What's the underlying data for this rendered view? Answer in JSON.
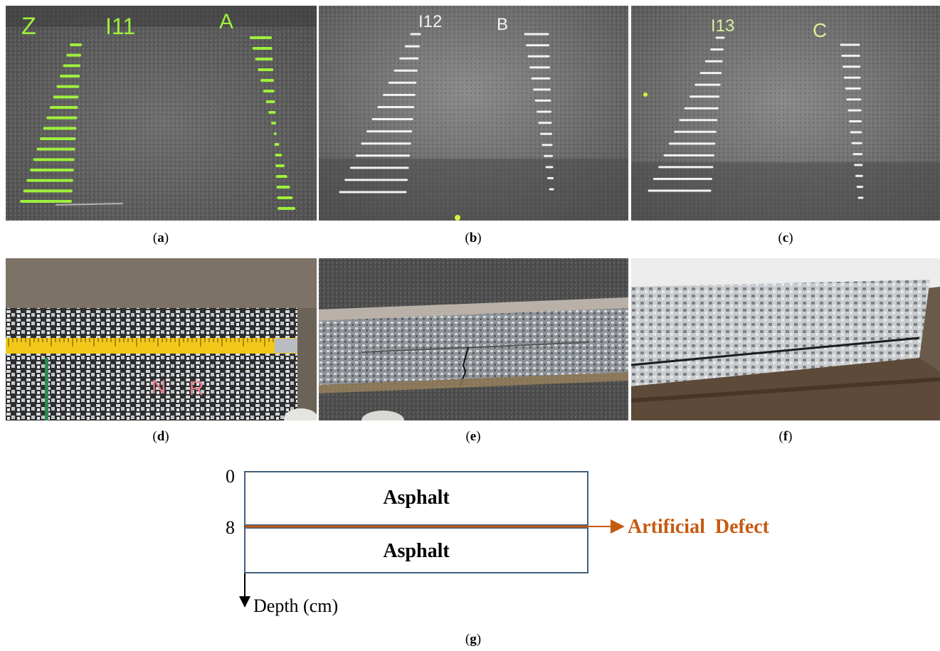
{
  "figure": {
    "panels": [
      {
        "id": "a",
        "caption_letter": "a"
      },
      {
        "id": "b",
        "caption_letter": "b"
      },
      {
        "id": "c",
        "caption_letter": "c"
      },
      {
        "id": "d",
        "caption_letter": "d"
      },
      {
        "id": "e",
        "caption_letter": "e"
      },
      {
        "id": "f",
        "caption_letter": "f"
      },
      {
        "id": "g",
        "caption_letter": "g"
      }
    ],
    "chalk_labels": {
      "a": [
        "Z",
        "I11",
        "A"
      ],
      "b": [
        "I12",
        "B"
      ],
      "c": [
        "I13",
        "C"
      ],
      "d": [
        "N",
        "R"
      ]
    },
    "diagram": {
      "axis_label": "Depth (cm)",
      "tick_top": "0",
      "tick_mid": "8",
      "layer_top": "Asphalt",
      "layer_bottom": "Asphalt",
      "defect_label": "Artificial  Defect"
    },
    "colors": {
      "chalk_green": "#9ef03c",
      "chalk_white": "#f2f2f2",
      "defect_orange": "#c55a11",
      "layer_border": "#41607e",
      "ruler_yellow": "#f2c81a"
    }
  }
}
